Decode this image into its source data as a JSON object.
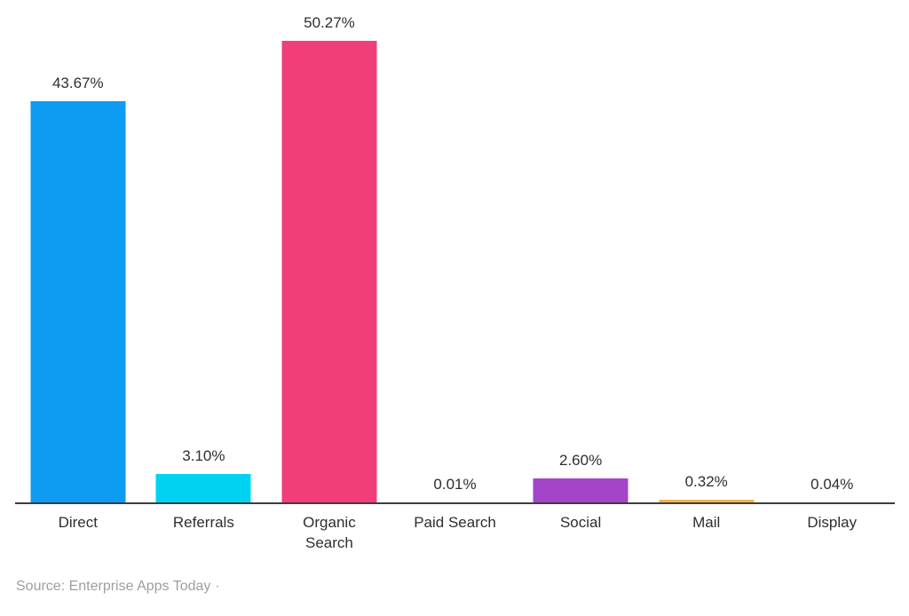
{
  "chart_data": {
    "type": "bar",
    "title": "",
    "categories": [
      "Direct",
      "Referrals",
      "Organic Search",
      "Paid Search",
      "Social",
      "Mail",
      "Display"
    ],
    "values": [
      43.67,
      3.1,
      50.27,
      0.01,
      2.6,
      0.32,
      0.04
    ],
    "data_labels": [
      "43.67%",
      "3.10%",
      "50.27%",
      "0.01%",
      "2.60%",
      "0.32%",
      "0.04%"
    ],
    "bar_colors": [
      "#0e9bf2",
      "#00d3f2",
      "#f23e78",
      null,
      "#a444c9",
      "#f2b04e",
      null
    ],
    "xlabel": "",
    "ylabel": "",
    "ylim": [
      0,
      50.27
    ],
    "grid": false,
    "legend": false,
    "axis_line_color": "#3d3d3d",
    "label_color": "#2e2e2e"
  },
  "source": {
    "text": "Source: Enterprise Apps Today",
    "suffix": "·",
    "color": "#9e9e9e"
  }
}
